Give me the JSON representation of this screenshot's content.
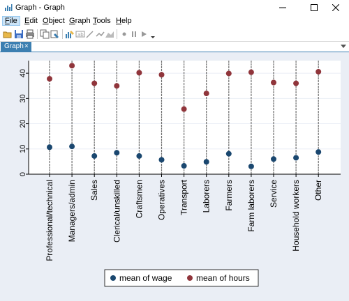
{
  "window": {
    "title": "Graph - Graph"
  },
  "menu": [
    {
      "label": "File",
      "key": "F",
      "rest": "ile"
    },
    {
      "label": "Edit",
      "key": "E",
      "rest": "dit"
    },
    {
      "label": "Object",
      "key": "O",
      "rest": "bject"
    },
    {
      "label": "Graph",
      "key": "G",
      "rest": "raph"
    },
    {
      "label": "Tools",
      "key": "T",
      "rest": "ools"
    },
    {
      "label": "Help",
      "key": "H",
      "rest": "elp"
    }
  ],
  "toolbar_icons": [
    "open-icon",
    "save-icon",
    "print-icon",
    "copy-icon",
    "rename-icon",
    "graph-editor-icon",
    "add-text-icon",
    "add-line-icon",
    "add-marker-icon",
    "add-area-icon",
    "record-icon",
    "pause-icon",
    "play-icon"
  ],
  "tab": {
    "label": "Graph",
    "close": "×"
  },
  "colors": {
    "wage": "#1a476f",
    "hours": "#90353b",
    "background": "#eaeef5",
    "plotregion": "#ffffff",
    "tab": "#3c7fb1"
  },
  "chart_data": {
    "type": "scatter",
    "categories": [
      "Professional/technical",
      "Managers/admin",
      "Sales",
      "Clerical/unskilled",
      "Craftsmen",
      "Operatives",
      "Transport",
      "Laborers",
      "Farmers",
      "Farm laborers",
      "Service",
      "Household workers",
      "Other"
    ],
    "series": [
      {
        "name": "mean of wage",
        "values": [
          10.7,
          11.0,
          7.2,
          8.5,
          7.2,
          5.7,
          3.3,
          4.9,
          8.1,
          3.1,
          6.0,
          6.5,
          8.8
        ]
      },
      {
        "name": "mean of hours",
        "values": [
          37.8,
          43.0,
          36.0,
          35.0,
          40.2,
          39.4,
          25.8,
          32.0,
          39.9,
          40.4,
          36.3,
          36.0,
          40.6
        ]
      }
    ],
    "ylim": [
      0,
      45
    ],
    "yticks": [
      0,
      10,
      20,
      30,
      40
    ],
    "grid": true,
    "legend": "bottom",
    "title": "",
    "xlabel": "",
    "ylabel": ""
  }
}
